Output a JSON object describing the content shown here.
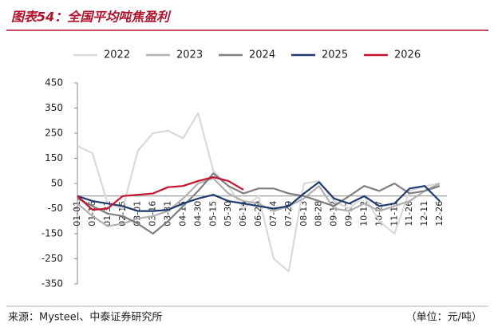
{
  "chart_data": {
    "type": "line",
    "title": "图表54：全国平均吨焦盈利",
    "source": "来源：Mysteel、中泰证券研究所",
    "unit": "（单位：元/吨）",
    "categories": [
      "01-01",
      "01-16",
      "01-31",
      "02-15",
      "03-01",
      "03-16",
      "03-31",
      "04-15",
      "04-30",
      "05-15",
      "05-30",
      "06-14",
      "06-29",
      "07-14",
      "07-29",
      "08-13",
      "08-28",
      "09-12",
      "09-27",
      "10-12",
      "10-27",
      "11-11",
      "11-26",
      "12-11",
      "12-26"
    ],
    "ylim": [
      -350,
      450
    ],
    "yticks": [
      -350,
      -250,
      -150,
      -50,
      50,
      150,
      250,
      350,
      450
    ],
    "legend": "top",
    "series": [
      {
        "name": "2022",
        "color": "#d9d9d9",
        "values": [
          200,
          170,
          -30,
          -50,
          180,
          250,
          260,
          230,
          330,
          100,
          40,
          -50,
          0,
          -250,
          -300,
          50,
          60,
          -20,
          -50,
          0,
          -100,
          -150,
          20,
          40,
          50
        ]
      },
      {
        "name": "2023",
        "color": "#b0b0b0",
        "values": [
          -30,
          -80,
          -120,
          -110,
          -90,
          -80,
          -60,
          -10,
          50,
          70,
          10,
          -20,
          -30,
          -60,
          -40,
          -10,
          40,
          -50,
          -60,
          -30,
          -60,
          -40,
          -20,
          20,
          50
        ]
      },
      {
        "name": "2024",
        "color": "#7f7f7f",
        "values": [
          -10,
          -40,
          -70,
          -80,
          -110,
          -150,
          -100,
          -40,
          20,
          90,
          40,
          10,
          30,
          30,
          10,
          0,
          -20,
          -40,
          0,
          40,
          20,
          50,
          10,
          20,
          40
        ]
      },
      {
        "name": "2025",
        "color": "#1f3a6e",
        "values": [
          0,
          -20,
          -30,
          -40,
          -60,
          -60,
          -55,
          -30,
          -10,
          5,
          -20,
          -30,
          -40,
          -50,
          -40,
          10,
          55,
          -10,
          -30,
          0,
          -40,
          -30,
          30,
          40,
          -20
        ]
      },
      {
        "name": "2026",
        "color": "#c8102e",
        "values": [
          0,
          -55,
          -50,
          0,
          5,
          10,
          35,
          40,
          60,
          75,
          60,
          25,
          null,
          null,
          null,
          null,
          null,
          null,
          null,
          null,
          null,
          null,
          null,
          null,
          null
        ]
      }
    ]
  }
}
